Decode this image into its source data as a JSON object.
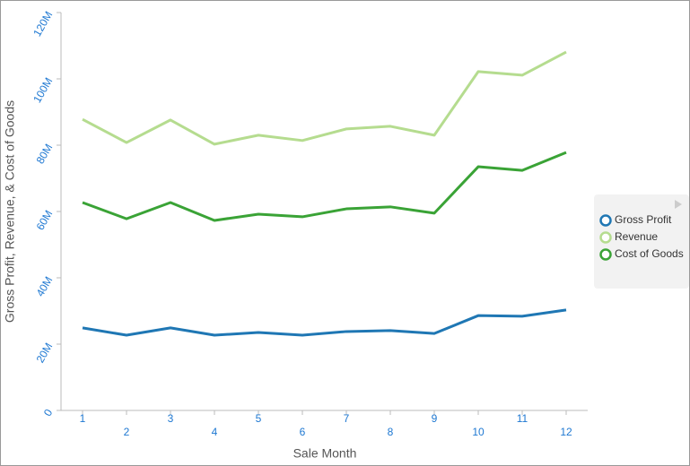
{
  "chart_data": {
    "type": "line",
    "x_label": "Sale Month",
    "y_label": "Gross Profit, Revenue, & Cost of Goods",
    "categories": [
      "1",
      "2",
      "3",
      "4",
      "5",
      "6",
      "7",
      "8",
      "9",
      "10",
      "11",
      "12"
    ],
    "series": [
      {
        "name": "Gross Profit",
        "color": "#1f77b4",
        "values": [
          24900000,
          22700000,
          24900000,
          22700000,
          23500000,
          22700000,
          23800000,
          24100000,
          23200000,
          28600000,
          28400000,
          30300000
        ]
      },
      {
        "name": "Revenue",
        "color": "#b5dc8f",
        "values": [
          87800000,
          80800000,
          87600000,
          80300000,
          83000000,
          81400000,
          84900000,
          85700000,
          83000000,
          102200000,
          101100000,
          108100000
        ]
      },
      {
        "name": "Cost of Goods",
        "color": "#3aa336",
        "values": [
          62700000,
          57800000,
          62700000,
          57300000,
          59200000,
          58400000,
          60800000,
          61400000,
          59500000,
          73500000,
          72400000,
          77800000
        ]
      }
    ],
    "ylim": [
      0,
      120000000
    ],
    "yticks": [
      0,
      {
        "value": 20000000,
        "label": "20M"
      },
      {
        "value": 40000000,
        "label": "40M"
      },
      {
        "value": 60000000,
        "label": "60M"
      },
      {
        "value": 80000000,
        "label": "80M"
      },
      {
        "value": 100000000,
        "label": "100M"
      },
      {
        "value": 120000000,
        "label": "120M"
      }
    ],
    "legend": "right"
  }
}
